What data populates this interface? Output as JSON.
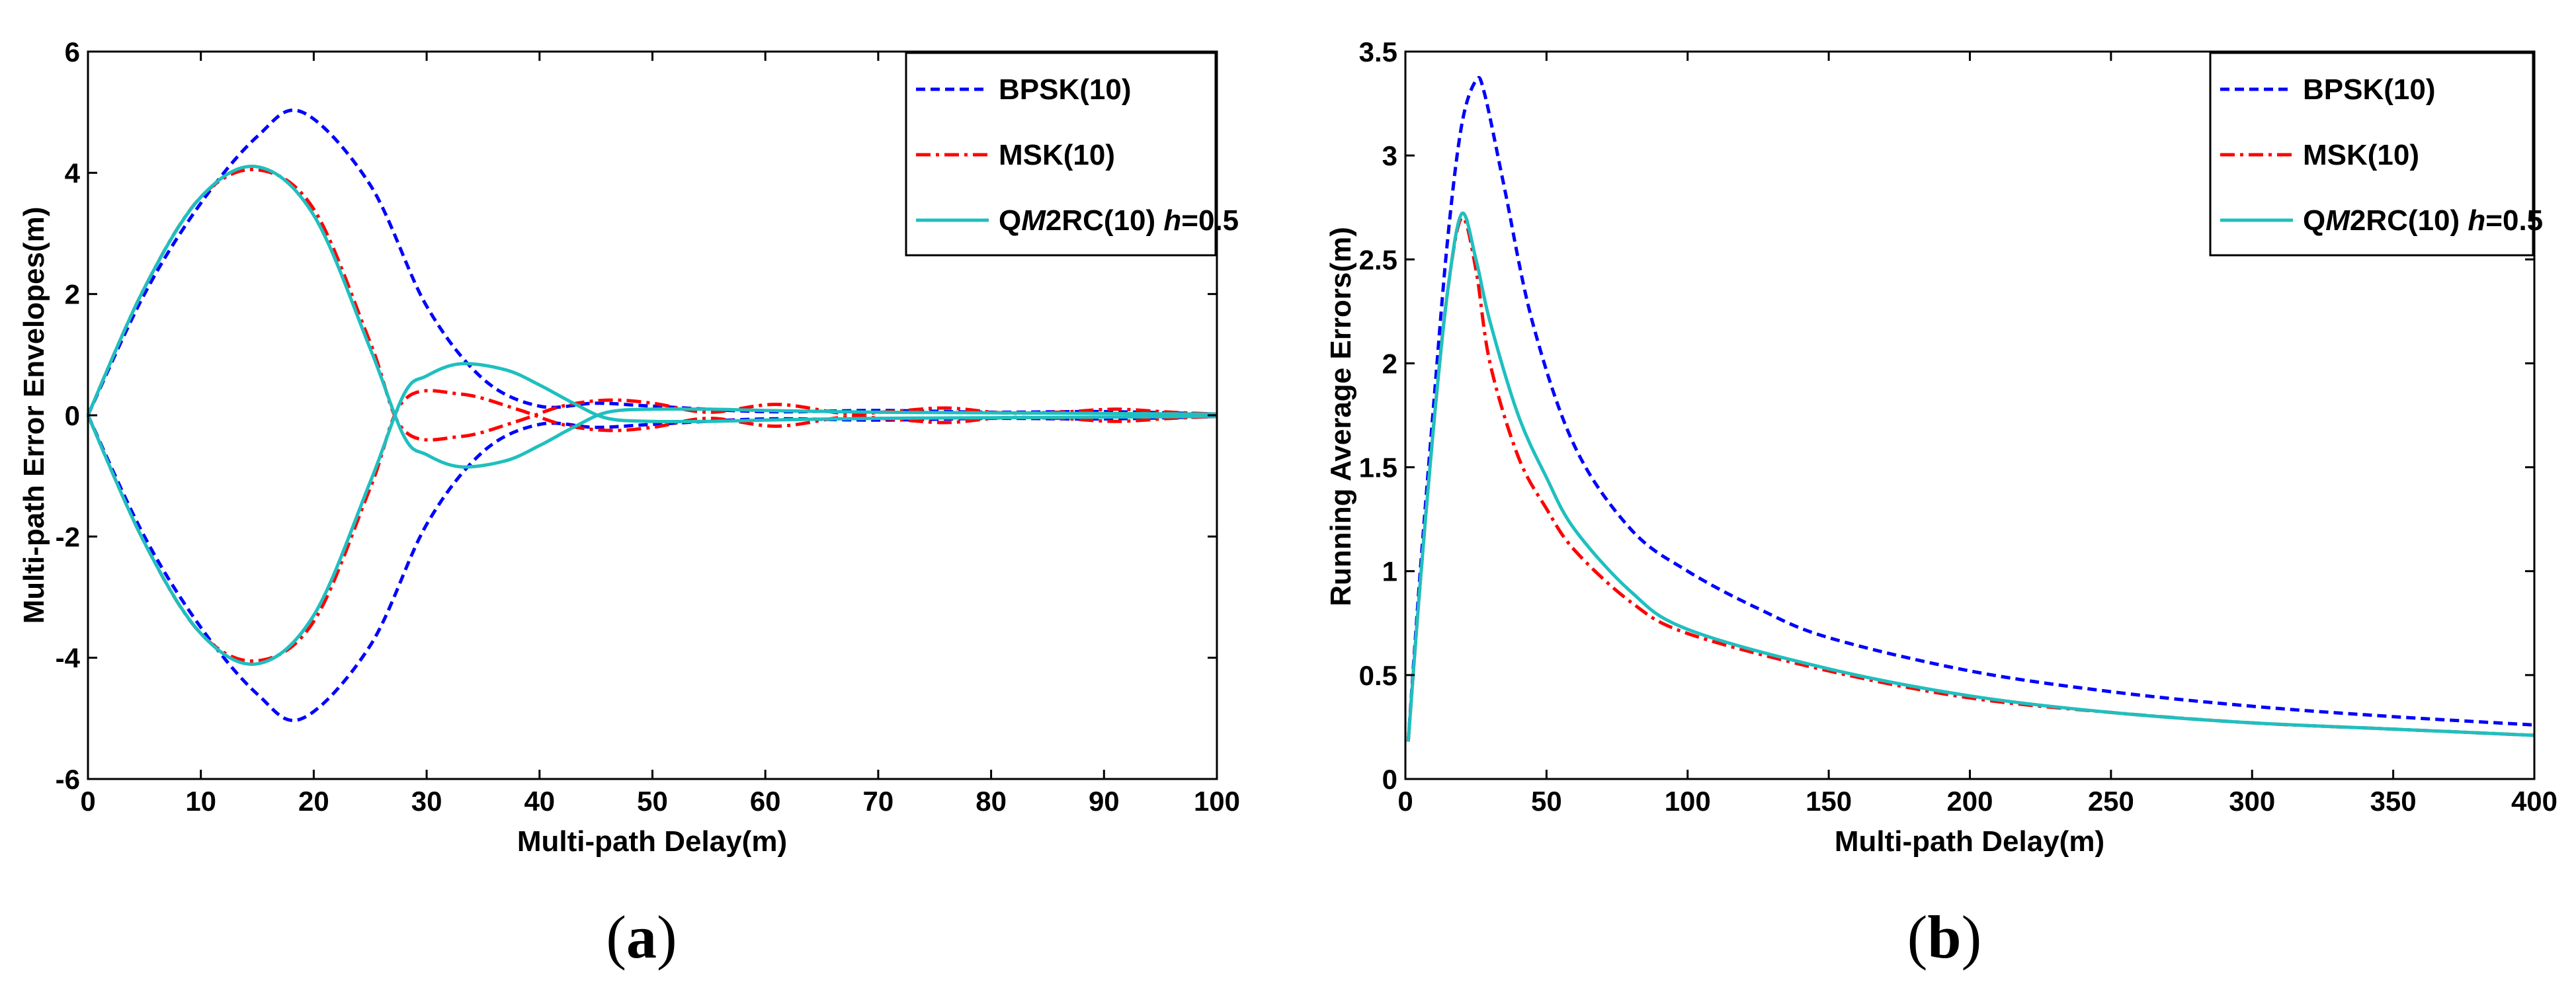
{
  "chart_data": [
    {
      "type": "line",
      "panel": "a",
      "xlabel": "Multi-path Delay(m)",
      "ylabel": "Multi-path Error Envelopes(m)",
      "xlim": [
        0,
        100
      ],
      "ylim": [
        -6,
        6
      ],
      "xticks": [
        0,
        10,
        20,
        30,
        40,
        50,
        60,
        70,
        80,
        90,
        100
      ],
      "yticks": [
        -6,
        -4,
        -2,
        0,
        2,
        4,
        6
      ],
      "legend_position": "top-right",
      "series": [
        {
          "name": "BPSK(10)",
          "color": "#0000ff",
          "style": "dashed",
          "upper": {
            "x": [
              0,
              5,
              10,
              15,
              19,
              25,
              30,
              35,
              40,
              45,
              50,
              60,
              70,
              80,
              90,
              100
            ],
            "y": [
              0,
              2.0,
              3.5,
              4.6,
              5.0,
              3.8,
              1.8,
              0.6,
              0.15,
              0.2,
              0.15,
              0.06,
              0.08,
              0.05,
              0.06,
              0.02
            ]
          },
          "lower": {
            "x": [
              0,
              5,
              10,
              15,
              19,
              25,
              30,
              35,
              40,
              45,
              50,
              60,
              70,
              80,
              90,
              100
            ],
            "y": [
              0,
              -2.0,
              -3.5,
              -4.6,
              -5.0,
              -3.8,
              -1.8,
              -0.6,
              -0.15,
              -0.2,
              -0.15,
              -0.06,
              -0.08,
              -0.05,
              -0.06,
              -0.02
            ]
          }
        },
        {
          "name": "MSK(10)",
          "color": "#ff0000",
          "style": "dashdot",
          "upper": {
            "x": [
              0,
              5,
              10,
              15,
              20,
              25,
              28,
              33,
              38,
              42,
              46,
              50,
              55,
              61,
              67,
              71,
              76,
              81,
              86,
              91,
              96,
              100
            ],
            "y": [
              0,
              2.1,
              3.6,
              4.05,
              3.4,
              1.2,
              -0.25,
              -0.35,
              -0.1,
              0.15,
              0.25,
              0.2,
              0.05,
              0.18,
              0.03,
              0.06,
              0.12,
              0.04,
              0.05,
              0.1,
              0.05,
              0.02
            ]
          },
          "lower": {
            "x": [
              0,
              5,
              10,
              15,
              20,
              25,
              28,
              33,
              38,
              42,
              46,
              50,
              55,
              61,
              67,
              71,
              76,
              81,
              86,
              91,
              96,
              100
            ],
            "y": [
              0,
              -2.1,
              -3.6,
              -4.05,
              -3.4,
              -1.2,
              0.25,
              0.35,
              0.1,
              -0.15,
              -0.25,
              -0.2,
              -0.05,
              -0.18,
              -0.03,
              -0.06,
              -0.12,
              -0.04,
              -0.05,
              -0.1,
              -0.05,
              -0.02
            ]
          }
        },
        {
          "name": "QM2RC(10) h=0.5",
          "color": "#1fbfbf",
          "style": "solid",
          "upper": {
            "x": [
              0,
              5,
              10,
              15,
              20,
              25,
              28,
              30,
              33,
              37,
              40,
              43,
              46,
              50,
              55,
              60,
              70,
              80,
              90,
              100
            ],
            "y": [
              0,
              2.1,
              3.6,
              4.1,
              3.3,
              1.1,
              -0.35,
              -0.65,
              -0.85,
              -0.75,
              -0.5,
              -0.2,
              0.05,
              0.1,
              0.1,
              0.08,
              0.05,
              0.04,
              0.03,
              0.02
            ]
          },
          "lower": {
            "x": [
              0,
              5,
              10,
              15,
              20,
              25,
              28,
              30,
              33,
              37,
              40,
              43,
              46,
              50,
              55,
              60,
              70,
              80,
              90,
              100
            ],
            "y": [
              0,
              -2.1,
              -3.6,
              -4.1,
              -3.3,
              -1.1,
              0.35,
              0.65,
              0.85,
              0.75,
              0.5,
              0.2,
              -0.05,
              -0.1,
              -0.1,
              -0.08,
              -0.05,
              -0.04,
              -0.03,
              -0.02
            ]
          }
        }
      ]
    },
    {
      "type": "line",
      "panel": "b",
      "xlabel": "Multi-path Delay(m)",
      "ylabel": "Running Average Errors(m)",
      "xlim": [
        0,
        400
      ],
      "ylim": [
        0,
        3.5
      ],
      "xticks": [
        0,
        50,
        100,
        150,
        200,
        250,
        300,
        350,
        400
      ],
      "yticks": [
        0,
        0.5,
        1,
        1.5,
        2,
        2.5,
        3,
        3.5
      ],
      "legend_position": "top-right",
      "series": [
        {
          "name": "BPSK(10)",
          "color": "#0000ff",
          "style": "dashed",
          "x": [
            1,
            5,
            10,
            15,
            20,
            25,
            28,
            35,
            45,
            60,
            80,
            100,
            125,
            150,
            200,
            250,
            300,
            350,
            400
          ],
          "y": [
            0.18,
            0.95,
            1.8,
            2.6,
            3.15,
            3.36,
            3.3,
            2.85,
            2.2,
            1.6,
            1.2,
            1.0,
            0.82,
            0.68,
            0.52,
            0.42,
            0.35,
            0.3,
            0.26
          ]
        },
        {
          "name": "MSK(10)",
          "color": "#ff0000",
          "style": "dashdot",
          "x": [
            1,
            5,
            10,
            15,
            20,
            25,
            30,
            40,
            50,
            60,
            80,
            100,
            150,
            200,
            250,
            300,
            350,
            400
          ],
          "y": [
            0.18,
            0.9,
            1.7,
            2.35,
            2.7,
            2.45,
            2.0,
            1.55,
            1.3,
            1.1,
            0.85,
            0.7,
            0.52,
            0.39,
            0.32,
            0.27,
            0.24,
            0.21
          ]
        },
        {
          "name": "QM2RC(10) h=0.5",
          "color": "#1fbfbf",
          "style": "solid",
          "x": [
            1,
            5,
            10,
            15,
            20,
            25,
            30,
            40,
            50,
            60,
            80,
            100,
            150,
            200,
            250,
            300,
            350,
            400
          ],
          "y": [
            0.18,
            0.9,
            1.7,
            2.35,
            2.72,
            2.5,
            2.2,
            1.75,
            1.45,
            1.2,
            0.9,
            0.72,
            0.53,
            0.4,
            0.32,
            0.27,
            0.24,
            0.21
          ]
        }
      ]
    }
  ],
  "legend": {
    "bpsk_label": "BPSK(10)",
    "msk_label": "MSK(10)",
    "qm_prefix": "Q",
    "qm_m": "M",
    "qm_mid": "2RC(10) ",
    "qm_h": "h",
    "qm_suffix": "=0.5"
  },
  "panel_labels": {
    "a_open": "(",
    "a": "a",
    "a_close": ")",
    "b_open": "(",
    "b": "b",
    "b_close": ")"
  }
}
